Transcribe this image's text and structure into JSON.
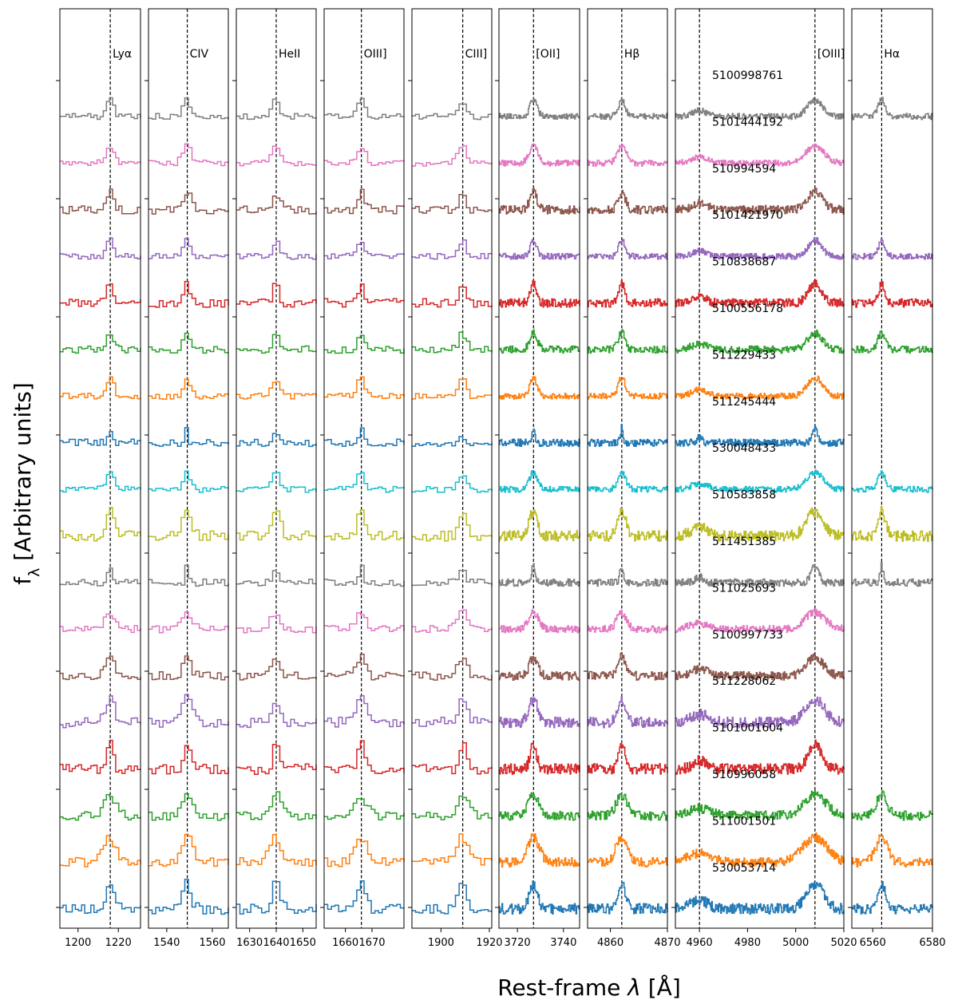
{
  "chart_data": {
    "type": "line",
    "drawstyle": "steps",
    "ylabel_main": "f",
    "ylabel_sub": "λ",
    "ylabel_rest": " [Arbitrary units]",
    "xlabel_prefix": "Rest-frame ",
    "xlabel_var": "λ",
    "xlabel_unit": " [Å]",
    "grid": false,
    "series_colors": [
      "#7f7f7f",
      "#e377c2",
      "#8c564b",
      "#9467bd",
      "#d62728",
      "#2ca02c",
      "#ff7f0e",
      "#1f77b4",
      "#17becf",
      "#bcbd22",
      "#7f7f7f",
      "#e377c2",
      "#8c564b",
      "#9467bd",
      "#d62728",
      "#2ca02c",
      "#ff7f0e",
      "#1f77b4"
    ],
    "object_ids": [
      "5100998761",
      "5101444192",
      "510994594",
      "5101421970",
      "510838687",
      "5100556178",
      "511229433",
      "511245444",
      "530048433",
      "510583858",
      "511451385",
      "511025693",
      "5100997733",
      "511228062",
      "5101001604",
      "510996058",
      "511001501",
      "530053714"
    ],
    "panels": [
      {
        "line_label": "Lyα",
        "line_wavelengths": [
          1216
        ],
        "xlim": [
          1191,
          1231
        ],
        "ticks": [
          1200,
          1220
        ],
        "tick_labels": [
          "1200",
          "1220"
        ],
        "present": [
          1,
          1,
          1,
          1,
          1,
          1,
          1,
          1,
          1,
          1,
          1,
          1,
          1,
          1,
          1,
          1,
          1,
          1
        ]
      },
      {
        "line_label": "CIV",
        "line_wavelengths": [
          1549
        ],
        "xlim": [
          1532,
          1567
        ],
        "ticks": [
          1540,
          1560
        ],
        "tick_labels": [
          "1540",
          "1560"
        ],
        "present": [
          1,
          1,
          1,
          1,
          1,
          1,
          1,
          1,
          1,
          1,
          1,
          1,
          1,
          1,
          1,
          1,
          1,
          1
        ]
      },
      {
        "line_label": "HeII",
        "line_wavelengths": [
          1640
        ],
        "xlim": [
          1625,
          1655
        ],
        "ticks": [
          1630,
          1640,
          1650
        ],
        "tick_labels": [
          "1630",
          "1640",
          "1650"
        ],
        "present": [
          1,
          1,
          1,
          1,
          1,
          1,
          1,
          1,
          1,
          1,
          1,
          1,
          1,
          1,
          1,
          1,
          1,
          1
        ]
      },
      {
        "line_label": "OIII]",
        "line_wavelengths": [
          1666
        ],
        "xlim": [
          1652,
          1682
        ],
        "ticks": [
          1660,
          1670
        ],
        "tick_labels": [
          "1660",
          "1670"
        ],
        "present": [
          1,
          1,
          1,
          1,
          1,
          1,
          1,
          1,
          1,
          1,
          1,
          1,
          1,
          1,
          1,
          1,
          1,
          1
        ]
      },
      {
        "line_label": "CIII]",
        "line_wavelengths": [
          1909
        ],
        "xlim": [
          1888,
          1921
        ],
        "ticks": [
          1900,
          1920
        ],
        "tick_labels": [
          "1900",
          "1920"
        ],
        "present": [
          1,
          1,
          1,
          1,
          1,
          1,
          1,
          1,
          1,
          1,
          1,
          1,
          1,
          1,
          1,
          1,
          1,
          1
        ]
      },
      {
        "line_label": "[OII]",
        "line_wavelengths": [
          3727
        ],
        "xlim": [
          3712,
          3747
        ],
        "ticks": [
          3720,
          3740
        ],
        "tick_labels": [
          "3720",
          "3740"
        ],
        "present": [
          1,
          1,
          1,
          1,
          1,
          1,
          1,
          1,
          1,
          1,
          1,
          1,
          1,
          1,
          1,
          1,
          1,
          1
        ]
      },
      {
        "line_label": "Hβ",
        "line_wavelengths": [
          4862
        ],
        "xlim": [
          4856,
          4870
        ],
        "ticks": [
          4860,
          4870
        ],
        "tick_labels": [
          "4860",
          "4870"
        ],
        "present": [
          1,
          1,
          1,
          1,
          1,
          1,
          1,
          1,
          1,
          1,
          1,
          1,
          1,
          1,
          1,
          1,
          1,
          1
        ]
      },
      {
        "line_label": "[OIII]",
        "line_wavelengths": [
          4960,
          5008
        ],
        "xlim": [
          4950,
          5020
        ],
        "ticks": [
          4960,
          4980,
          5000,
          5020
        ],
        "tick_labels": [
          "4960",
          "4980",
          "5000",
          "5020"
        ],
        "present": [
          1,
          1,
          1,
          1,
          1,
          1,
          1,
          1,
          1,
          1,
          1,
          1,
          1,
          1,
          1,
          1,
          1,
          1
        ]
      },
      {
        "line_label": "Hα",
        "line_wavelengths": [
          6563
        ],
        "xlim": [
          6553,
          6580
        ],
        "ticks": [
          6560,
          6580
        ],
        "tick_labels": [
          "6560",
          "6580"
        ],
        "present": [
          1,
          0,
          0,
          1,
          1,
          1,
          0,
          0,
          1,
          1,
          1,
          0,
          0,
          0,
          0,
          1,
          1,
          1
        ]
      }
    ]
  }
}
